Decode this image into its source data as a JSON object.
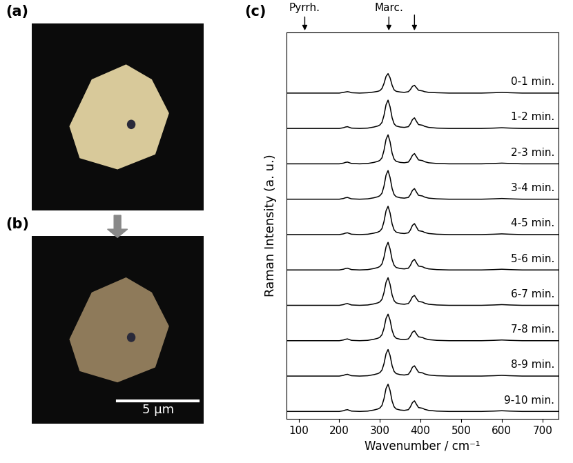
{
  "panels": {
    "a": {
      "label": "(a)"
    },
    "b": {
      "label": "(b)",
      "scale_bar": "5 µm"
    }
  },
  "chart_data": {
    "type": "line",
    "panel_label": "(c)",
    "x_label": "Wavenumber / cm⁻¹",
    "y_label": "Raman Intensity (a. u.)",
    "xlim": [
      70,
      740
    ],
    "xticks": [
      100,
      200,
      300,
      400,
      500,
      600,
      700
    ],
    "ylim": [
      0,
      1
    ],
    "tick_labels": "x",
    "color": "#000000",
    "annotations": [
      {
        "text": "Pyrrh.",
        "x": [
          115
        ]
      },
      {
        "text": "Marc.",
        "x": [
          322,
          385
        ]
      }
    ],
    "x": [
      70,
      100,
      150,
      200,
      210,
      215,
      220,
      225,
      230,
      250,
      270,
      285,
      295,
      300,
      305,
      310,
      315,
      320,
      325,
      330,
      335,
      340,
      350,
      360,
      370,
      375,
      380,
      385,
      390,
      395,
      400,
      405,
      410,
      420,
      440,
      470,
      500,
      550,
      580,
      600,
      620,
      650,
      700,
      740
    ],
    "series": [
      {
        "name": "0-1 min.",
        "values": [
          0.05,
          0.05,
          0.05,
          0.05,
          0.07,
          0.08,
          0.09,
          0.08,
          0.06,
          0.05,
          0.06,
          0.08,
          0.1,
          0.12,
          0.18,
          0.32,
          0.52,
          0.6,
          0.48,
          0.27,
          0.14,
          0.1,
          0.08,
          0.07,
          0.09,
          0.15,
          0.24,
          0.27,
          0.2,
          0.13,
          0.12,
          0.11,
          0.09,
          0.07,
          0.06,
          0.05,
          0.05,
          0.05,
          0.06,
          0.07,
          0.06,
          0.05,
          0.05,
          0.05
        ]
      },
      {
        "name": "1-2 min.",
        "values": [
          0.05,
          0.05,
          0.05,
          0.05,
          0.07,
          0.09,
          0.1,
          0.08,
          0.06,
          0.05,
          0.06,
          0.09,
          0.12,
          0.15,
          0.22,
          0.42,
          0.72,
          0.85,
          0.66,
          0.35,
          0.18,
          0.12,
          0.09,
          0.08,
          0.1,
          0.18,
          0.3,
          0.35,
          0.25,
          0.16,
          0.15,
          0.14,
          0.11,
          0.08,
          0.06,
          0.05,
          0.05,
          0.05,
          0.06,
          0.07,
          0.06,
          0.05,
          0.05,
          0.05
        ]
      },
      {
        "name": "2-3 min.",
        "values": [
          0.05,
          0.05,
          0.05,
          0.05,
          0.07,
          0.09,
          0.1,
          0.08,
          0.06,
          0.05,
          0.06,
          0.09,
          0.12,
          0.15,
          0.22,
          0.43,
          0.74,
          0.87,
          0.67,
          0.35,
          0.18,
          0.12,
          0.09,
          0.08,
          0.1,
          0.18,
          0.29,
          0.34,
          0.25,
          0.16,
          0.15,
          0.14,
          0.11,
          0.08,
          0.06,
          0.05,
          0.05,
          0.05,
          0.06,
          0.07,
          0.06,
          0.05,
          0.05,
          0.05
        ]
      },
      {
        "name": "3-4 min.",
        "values": [
          0.05,
          0.05,
          0.05,
          0.05,
          0.07,
          0.09,
          0.1,
          0.08,
          0.06,
          0.05,
          0.06,
          0.09,
          0.12,
          0.15,
          0.22,
          0.42,
          0.73,
          0.86,
          0.66,
          0.35,
          0.18,
          0.12,
          0.09,
          0.08,
          0.1,
          0.18,
          0.3,
          0.35,
          0.25,
          0.16,
          0.15,
          0.14,
          0.11,
          0.08,
          0.06,
          0.05,
          0.05,
          0.05,
          0.06,
          0.07,
          0.06,
          0.05,
          0.05,
          0.05
        ]
      },
      {
        "name": "4-5 min.",
        "values": [
          0.05,
          0.05,
          0.05,
          0.05,
          0.07,
          0.09,
          0.1,
          0.08,
          0.06,
          0.05,
          0.06,
          0.09,
          0.12,
          0.15,
          0.22,
          0.42,
          0.72,
          0.85,
          0.66,
          0.35,
          0.18,
          0.12,
          0.09,
          0.08,
          0.1,
          0.18,
          0.31,
          0.36,
          0.26,
          0.16,
          0.15,
          0.14,
          0.11,
          0.08,
          0.06,
          0.05,
          0.05,
          0.05,
          0.06,
          0.07,
          0.06,
          0.05,
          0.05,
          0.05
        ]
      },
      {
        "name": "5-6 min.",
        "values": [
          0.05,
          0.05,
          0.05,
          0.05,
          0.07,
          0.09,
          0.1,
          0.08,
          0.06,
          0.05,
          0.06,
          0.09,
          0.12,
          0.15,
          0.22,
          0.41,
          0.7,
          0.83,
          0.64,
          0.34,
          0.18,
          0.12,
          0.09,
          0.08,
          0.1,
          0.18,
          0.3,
          0.35,
          0.25,
          0.16,
          0.15,
          0.14,
          0.11,
          0.08,
          0.06,
          0.05,
          0.05,
          0.05,
          0.06,
          0.07,
          0.06,
          0.05,
          0.05,
          0.05
        ]
      },
      {
        "name": "6-7 min.",
        "values": [
          0.05,
          0.05,
          0.05,
          0.05,
          0.07,
          0.09,
          0.1,
          0.08,
          0.06,
          0.05,
          0.06,
          0.09,
          0.12,
          0.15,
          0.22,
          0.41,
          0.7,
          0.83,
          0.64,
          0.34,
          0.18,
          0.12,
          0.09,
          0.08,
          0.1,
          0.18,
          0.29,
          0.33,
          0.24,
          0.16,
          0.15,
          0.14,
          0.11,
          0.08,
          0.06,
          0.05,
          0.05,
          0.05,
          0.06,
          0.07,
          0.06,
          0.05,
          0.05,
          0.05
        ]
      },
      {
        "name": "7-8 min.",
        "values": [
          0.05,
          0.05,
          0.05,
          0.05,
          0.07,
          0.09,
          0.1,
          0.08,
          0.06,
          0.05,
          0.06,
          0.09,
          0.12,
          0.15,
          0.22,
          0.4,
          0.68,
          0.8,
          0.63,
          0.34,
          0.18,
          0.12,
          0.09,
          0.08,
          0.1,
          0.18,
          0.29,
          0.33,
          0.24,
          0.16,
          0.15,
          0.14,
          0.11,
          0.08,
          0.06,
          0.05,
          0.05,
          0.05,
          0.06,
          0.07,
          0.06,
          0.05,
          0.05,
          0.05
        ]
      },
      {
        "name": "8-9 min.",
        "values": [
          0.05,
          0.05,
          0.05,
          0.05,
          0.07,
          0.09,
          0.1,
          0.08,
          0.06,
          0.05,
          0.06,
          0.09,
          0.12,
          0.15,
          0.22,
          0.4,
          0.68,
          0.8,
          0.63,
          0.34,
          0.18,
          0.12,
          0.09,
          0.08,
          0.1,
          0.18,
          0.3,
          0.34,
          0.25,
          0.16,
          0.15,
          0.14,
          0.11,
          0.08,
          0.06,
          0.05,
          0.05,
          0.05,
          0.06,
          0.07,
          0.06,
          0.05,
          0.05,
          0.05
        ]
      },
      {
        "name": "9-10 min.",
        "values": [
          0.05,
          0.05,
          0.05,
          0.05,
          0.07,
          0.09,
          0.1,
          0.08,
          0.06,
          0.05,
          0.06,
          0.09,
          0.12,
          0.15,
          0.22,
          0.41,
          0.7,
          0.82,
          0.64,
          0.34,
          0.18,
          0.12,
          0.09,
          0.08,
          0.1,
          0.18,
          0.3,
          0.35,
          0.25,
          0.16,
          0.15,
          0.14,
          0.11,
          0.08,
          0.06,
          0.05,
          0.05,
          0.05,
          0.06,
          0.07,
          0.06,
          0.05,
          0.05,
          0.05
        ]
      }
    ]
  }
}
